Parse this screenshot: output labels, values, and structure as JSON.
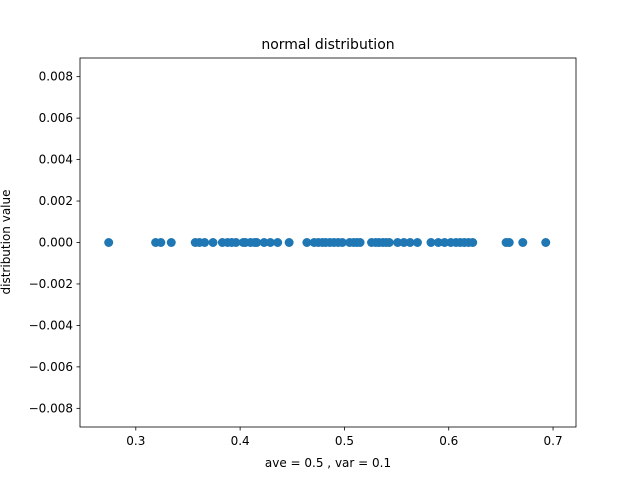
{
  "chart_data": {
    "type": "scatter",
    "title": "normal distribution",
    "xlabel": "ave = 0.5 , var = 0.1",
    "ylabel": "distribution value",
    "xlim": [
      0.2465,
      0.722
    ],
    "ylim": [
      -0.0089,
      0.0089
    ],
    "x_ticks": [
      0.3,
      0.4,
      0.5,
      0.6,
      0.7
    ],
    "x_tick_labels": [
      "0.3",
      "0.4",
      "0.5",
      "0.6",
      "0.7"
    ],
    "y_ticks": [
      0.008,
      0.006,
      0.004,
      0.002,
      0.0,
      -0.002,
      -0.004,
      -0.006,
      -0.008
    ],
    "y_tick_labels": [
      "0.008",
      "0.006",
      "0.004",
      "0.002",
      "0.000",
      "−0.002",
      "−0.004",
      "−0.006",
      "−0.008"
    ],
    "grid": false,
    "marker_color": "#1f77b4",
    "x": [
      0.274,
      0.319,
      0.324,
      0.334,
      0.357,
      0.361,
      0.366,
      0.374,
      0.383,
      0.388,
      0.392,
      0.396,
      0.403,
      0.405,
      0.41,
      0.414,
      0.416,
      0.423,
      0.429,
      0.436,
      0.447,
      0.464,
      0.471,
      0.475,
      0.479,
      0.482,
      0.486,
      0.49,
      0.494,
      0.498,
      0.505,
      0.509,
      0.512,
      0.515,
      0.526,
      0.53,
      0.533,
      0.537,
      0.54,
      0.543,
      0.551,
      0.557,
      0.563,
      0.57,
      0.583,
      0.59,
      0.596,
      0.602,
      0.607,
      0.611,
      0.615,
      0.619,
      0.623,
      0.655,
      0.658,
      0.671,
      0.693
    ],
    "y": [
      0.0,
      0.0,
      0.0,
      0.0,
      0.0,
      0.0,
      0.0,
      0.0,
      0.0,
      0.0,
      0.0,
      0.0,
      0.0,
      0.0,
      0.0,
      0.0,
      0.0,
      0.0,
      0.0,
      0.0,
      0.0,
      0.0,
      0.0,
      0.0,
      0.0,
      0.0,
      0.0,
      0.0,
      0.0,
      0.0,
      0.0,
      0.0,
      0.0,
      0.0,
      0.0,
      0.0,
      0.0,
      0.0,
      0.0,
      0.0,
      0.0,
      0.0,
      0.0,
      0.0,
      0.0,
      0.0,
      0.0,
      0.0,
      0.0,
      0.0,
      0.0,
      0.0,
      0.0,
      0.0,
      0.0,
      0.0,
      0.0
    ]
  }
}
